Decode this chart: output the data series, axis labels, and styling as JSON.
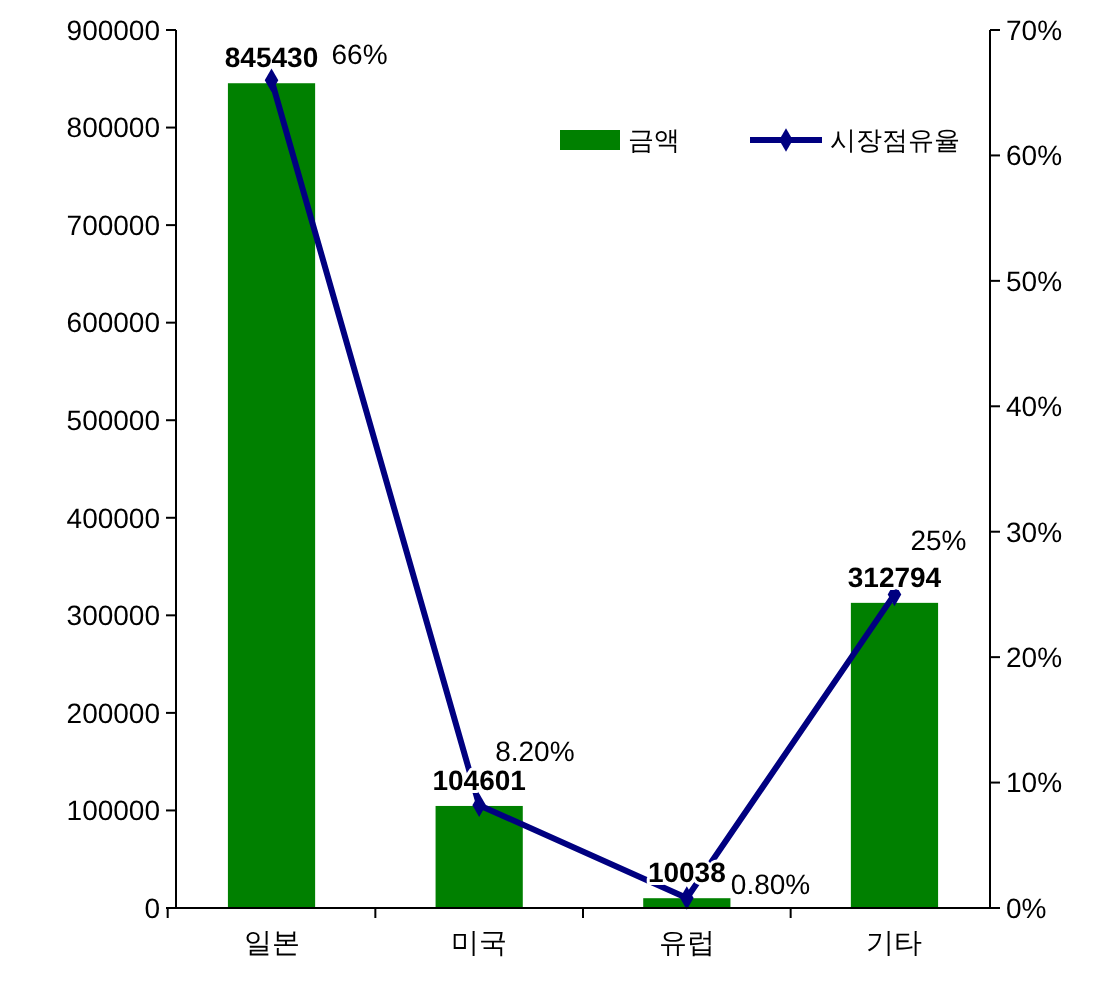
{
  "chart_data": {
    "type": "bar",
    "categories": [
      "일본",
      "미국",
      "유럽",
      "기타"
    ],
    "series": [
      {
        "name": "금액",
        "color": "#008000",
        "values": [
          845430,
          104601,
          10038,
          312794
        ],
        "value_labels": [
          "845430",
          "104601",
          "10038",
          "312794"
        ]
      },
      {
        "name": "시장점유율",
        "type": "line",
        "axis": "y2",
        "color": "#000080",
        "marker": "diamond",
        "values": [
          66,
          8.2,
          0.8,
          25
        ],
        "value_labels": [
          "66%",
          "8.20%",
          "0.80%",
          "25%"
        ]
      }
    ],
    "ylim": [
      0,
      900000
    ],
    "yticks": [
      0,
      100000,
      200000,
      300000,
      400000,
      500000,
      600000,
      700000,
      800000,
      900000
    ],
    "y2lim": [
      0,
      70
    ],
    "y2ticks": [
      {
        "value": 0,
        "label": "0%"
      },
      {
        "value": 10,
        "label": "10%"
      },
      {
        "value": 20,
        "label": "20%"
      },
      {
        "value": 30,
        "label": "30%"
      },
      {
        "value": 40,
        "label": "40%"
      },
      {
        "value": 50,
        "label": "50%"
      },
      {
        "value": 60,
        "label": "60%"
      },
      {
        "value": 70,
        "label": "70%"
      }
    ],
    "legend": "top right",
    "grid": false
  }
}
